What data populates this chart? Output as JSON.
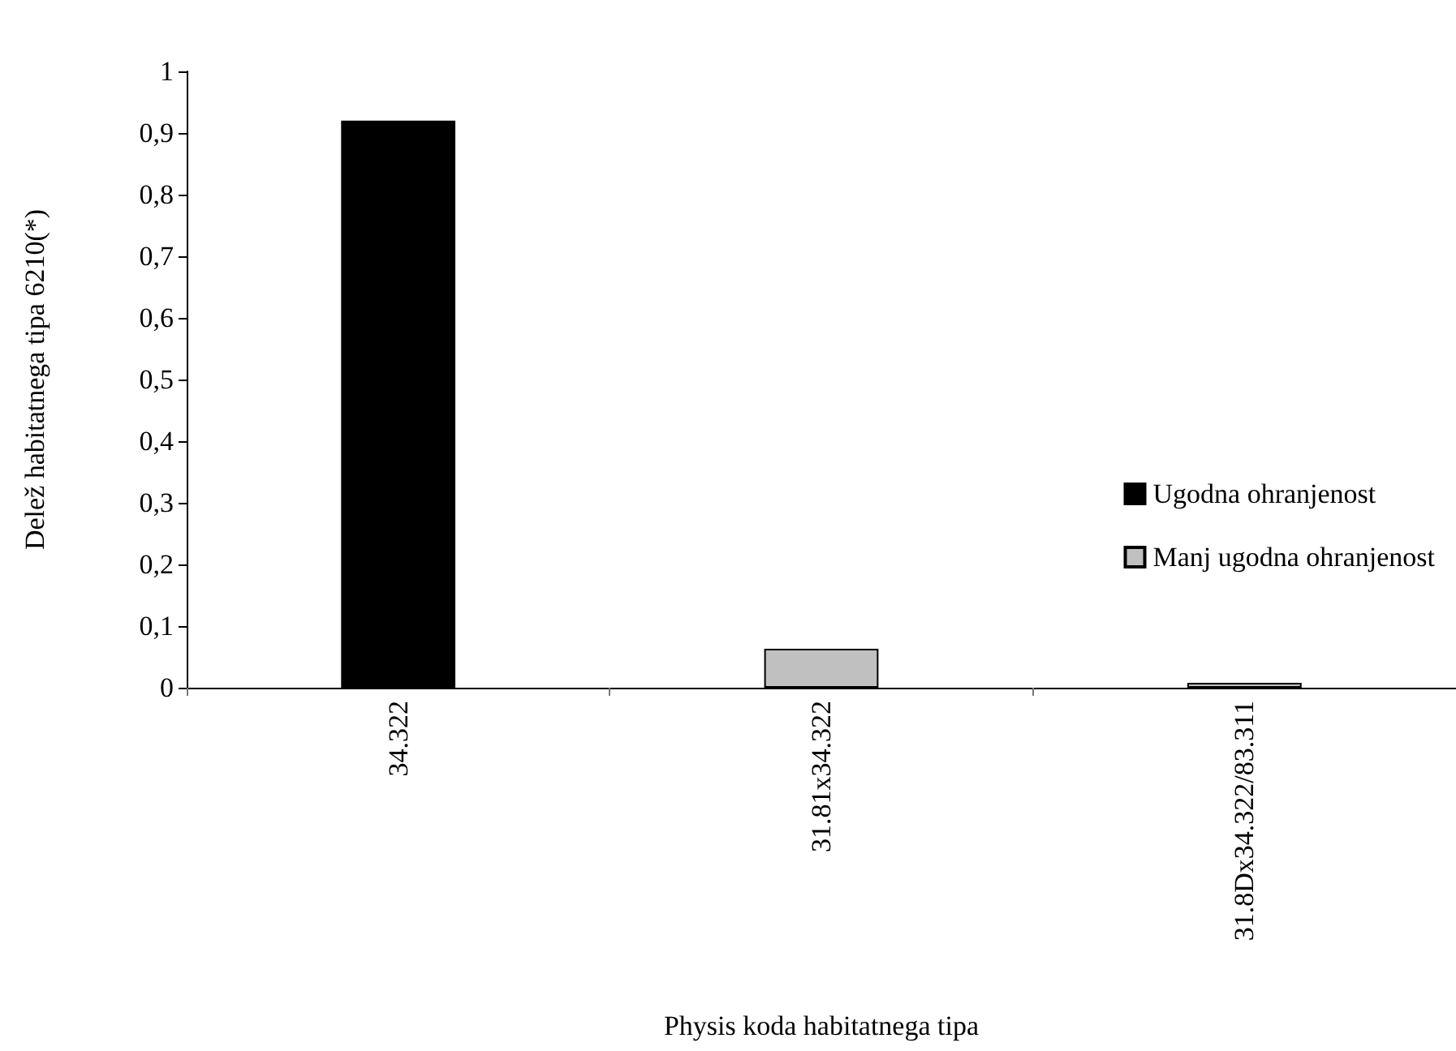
{
  "chart_data": {
    "type": "bar",
    "xlabel": "Physis koda habitatnega tipa",
    "ylabel": "Delež habitatnega tipa 6210(*)",
    "categories": [
      "34.322",
      "31.81x34.322",
      "31.8Dx34.322/83.311"
    ],
    "stacked": true,
    "series": [
      {
        "name": "Ugodna ohranjenost",
        "color": "#000000",
        "values": [
          0.92,
          null,
          null
        ]
      },
      {
        "name": "Manj ugodna ohranjenost",
        "color": "#c0c0c0",
        "values": [
          null,
          0.063,
          0.008
        ]
      }
    ],
    "ylim": [
      0,
      1
    ],
    "yticks": [
      {
        "value": 0,
        "label": "0"
      },
      {
        "value": 0.1,
        "label": "0,1"
      },
      {
        "value": 0.2,
        "label": "0,2"
      },
      {
        "value": 0.3,
        "label": "0,3"
      },
      {
        "value": 0.4,
        "label": "0,4"
      },
      {
        "value": 0.5,
        "label": "0,5"
      },
      {
        "value": 0.6,
        "label": "0,6"
      },
      {
        "value": 0.7,
        "label": "0,7"
      },
      {
        "value": 0.8,
        "label": "0,8"
      },
      {
        "value": 0.9,
        "label": "0,9"
      },
      {
        "value": 1,
        "label": "1"
      }
    ],
    "grid": false,
    "legend": "right"
  }
}
